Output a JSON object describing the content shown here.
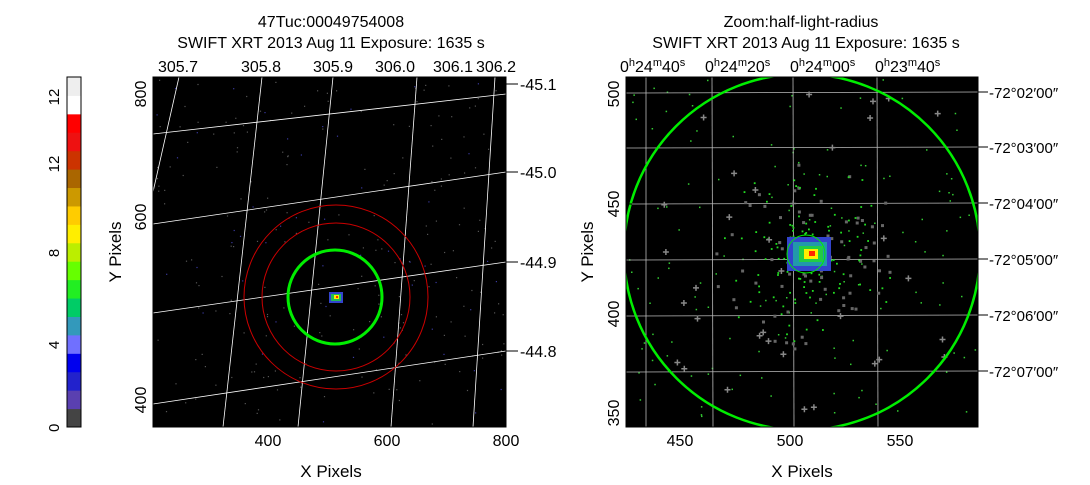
{
  "colorbar": {
    "labels": [
      "0",
      "4",
      "8",
      "12",
      "12"
    ],
    "colors": [
      "#444444",
      "#5a40b0",
      "#2222cc",
      "#0000ee",
      "#7070ff",
      "#3399bb",
      "#00cc66",
      "#22ee22",
      "#66ff00",
      "#bbee00",
      "#ffee00",
      "#ffcc00",
      "#cc9900",
      "#aa6600",
      "#cc3300",
      "#ee1111",
      "#ff0000",
      "#ffffff",
      "#eeeeee"
    ]
  },
  "left_panel": {
    "title_line1": "47Tuc:00049754008",
    "title_line2": "SWIFT XRT   2013 Aug 11    Exposure: 1635 s",
    "xlabel": "X Pixels",
    "ylabel": "Y Pixels",
    "x_ticks": [
      "400",
      "600",
      "800"
    ],
    "y_ticks": [
      "400",
      "600",
      "800"
    ],
    "top_ticks": [
      "305.7",
      "305.8",
      "305.9",
      "306.0",
      "306.1",
      "306.2"
    ],
    "right_ticks": [
      "-45.1",
      "-45.0",
      "-44.9",
      "-44.8"
    ],
    "grid_color": "#ffffff",
    "circle_green": "#00ee00",
    "circle_red": "#cc0000"
  },
  "right_panel": {
    "title_line1": "Zoom:half-light-radius",
    "title_line2": "SWIFT XRT   2013 Aug 11    Exposure: 1635 s",
    "xlabel": "X Pixels",
    "ylabel": "Y Pixels",
    "x_ticks": [
      "450",
      "500",
      "550"
    ],
    "y_ticks": [
      "350",
      "400",
      "450",
      "500"
    ],
    "top_ticks": [
      {
        "h": "0",
        "m": "24",
        "s": "40"
      },
      {
        "h": "0",
        "m": "24",
        "s": "20"
      },
      {
        "h": "0",
        "m": "24",
        "s": "00"
      },
      {
        "h": "0",
        "m": "23",
        "s": "40"
      }
    ],
    "right_ticks": [
      "-72°02′00″",
      "-72°03′00″",
      "-72°04′00″",
      "-72°05′00″",
      "-72°06′00″",
      "-72°07′00″"
    ],
    "circle_green": "#00ee00"
  }
}
